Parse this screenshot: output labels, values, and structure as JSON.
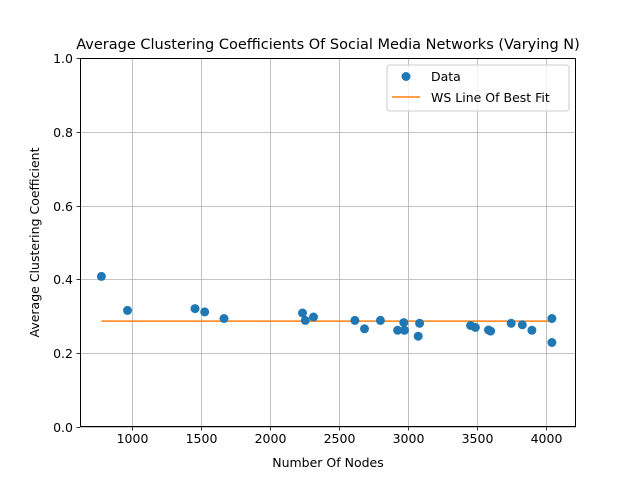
{
  "chart_data": {
    "type": "scatter",
    "title": "Average Clustering Coefficients Of Social Media Networks (Varying N)",
    "xlabel": "Number Of Nodes",
    "ylabel": "Average Clustering Coefficient",
    "xlim": [
      620,
      4220
    ],
    "ylim": [
      0.0,
      1.0
    ],
    "xticks": [
      1000,
      1500,
      2000,
      2500,
      3000,
      3500,
      4000
    ],
    "yticks": [
      0.0,
      0.2,
      0.4,
      0.6,
      0.8,
      1.0
    ],
    "grid": true,
    "legend_position": "top-right",
    "series": [
      {
        "name": "Data",
        "kind": "scatter",
        "color": "#1f77b4",
        "points": [
          {
            "x": 775,
            "y": 0.408
          },
          {
            "x": 965,
            "y": 0.316
          },
          {
            "x": 1455,
            "y": 0.321
          },
          {
            "x": 1525,
            "y": 0.312
          },
          {
            "x": 1665,
            "y": 0.294
          },
          {
            "x": 2235,
            "y": 0.309
          },
          {
            "x": 2255,
            "y": 0.289
          },
          {
            "x": 2315,
            "y": 0.298
          },
          {
            "x": 2615,
            "y": 0.289
          },
          {
            "x": 2685,
            "y": 0.266
          },
          {
            "x": 2800,
            "y": 0.289
          },
          {
            "x": 2925,
            "y": 0.262
          },
          {
            "x": 2970,
            "y": 0.283
          },
          {
            "x": 2975,
            "y": 0.262
          },
          {
            "x": 3075,
            "y": 0.246
          },
          {
            "x": 3085,
            "y": 0.281
          },
          {
            "x": 3455,
            "y": 0.275
          },
          {
            "x": 3490,
            "y": 0.27
          },
          {
            "x": 3585,
            "y": 0.263
          },
          {
            "x": 3600,
            "y": 0.26
          },
          {
            "x": 3750,
            "y": 0.281
          },
          {
            "x": 3830,
            "y": 0.277
          },
          {
            "x": 3900,
            "y": 0.262
          },
          {
            "x": 4045,
            "y": 0.294
          },
          {
            "x": 4045,
            "y": 0.229
          }
        ]
      },
      {
        "name": "WS Line Of Best Fit",
        "kind": "line",
        "color": "#ff7f0e",
        "points": [
          {
            "x": 775,
            "y": 0.287
          },
          {
            "x": 4045,
            "y": 0.287
          }
        ]
      }
    ]
  }
}
